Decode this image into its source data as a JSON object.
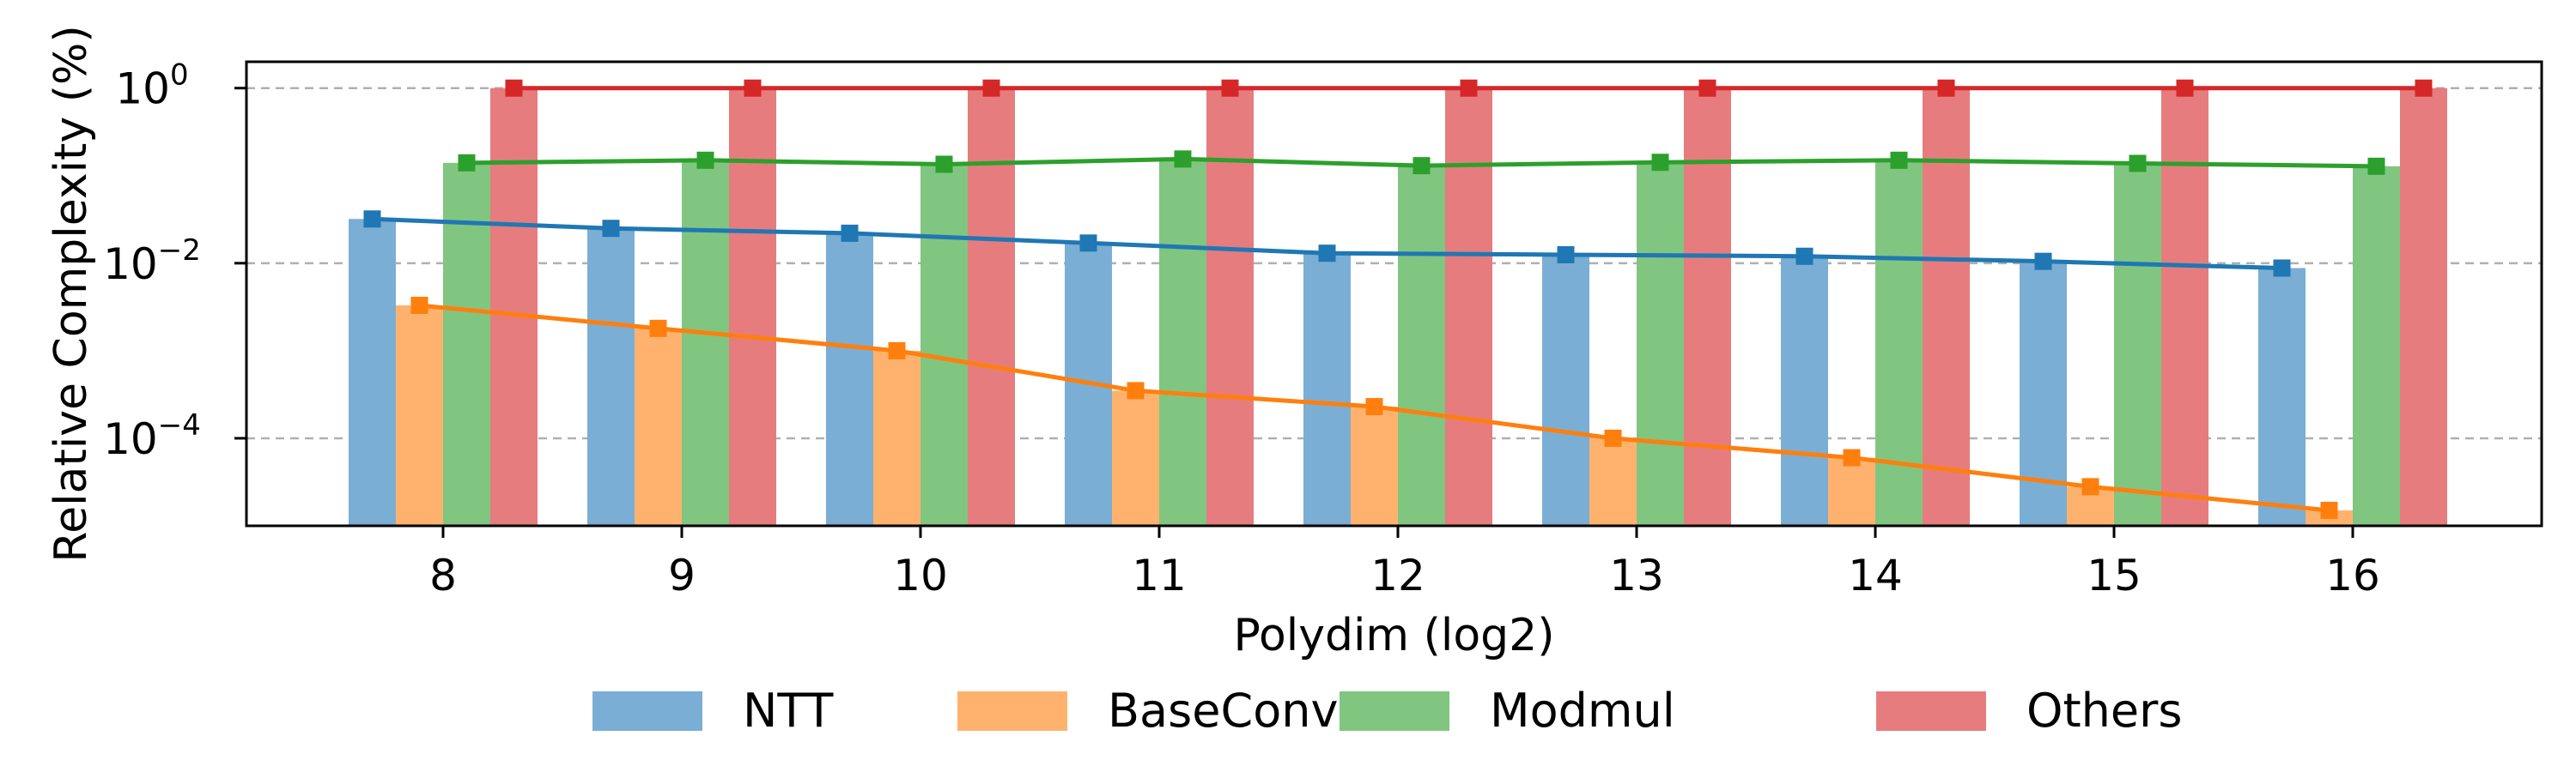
{
  "chart_data": {
    "type": "bar",
    "categories": [
      "8",
      "9",
      "10",
      "11",
      "12",
      "13",
      "14",
      "15",
      "16"
    ],
    "xlabel": "Polydim (log2)",
    "ylabel": "Relative Complexity (%)",
    "yscale": "log",
    "ylim": [
      1e-05,
      2
    ],
    "yticks": [
      {
        "value": 1,
        "label": "10^0",
        "base": "10",
        "exp": "0"
      },
      {
        "value": 0.01,
        "label": "10^-2",
        "base": "10",
        "exp": "−2"
      },
      {
        "value": 0.0001,
        "label": "10^-4",
        "base": "10",
        "exp": "−4"
      }
    ],
    "grid": "horizontal dashed at major y ticks",
    "legend_placement": "below plot",
    "series": [
      {
        "name": "NTT",
        "bar_color": "#7aaed4",
        "line_color": "#1f77b4",
        "values": [
          0.032,
          0.025,
          0.022,
          0.017,
          0.013,
          0.0125,
          0.012,
          0.0105,
          0.0088
        ]
      },
      {
        "name": "BaseConv",
        "bar_color": "#ffb26e",
        "line_color": "#ff7f0e",
        "values": [
          0.0033,
          0.0018,
          0.001,
          0.00035,
          0.00023,
          0.0001,
          6e-05,
          2.8e-05,
          1.5e-05
        ]
      },
      {
        "name": "Modmul",
        "bar_color": "#80c680",
        "line_color": "#2ca02c",
        "values": [
          0.14,
          0.15,
          0.135,
          0.155,
          0.13,
          0.142,
          0.15,
          0.138,
          0.128
        ]
      },
      {
        "name": "Others",
        "bar_color": "#e77c7e",
        "line_color": "#d62728",
        "values": [
          1,
          1,
          1,
          1,
          1,
          1,
          1,
          1,
          1
        ]
      }
    ]
  }
}
